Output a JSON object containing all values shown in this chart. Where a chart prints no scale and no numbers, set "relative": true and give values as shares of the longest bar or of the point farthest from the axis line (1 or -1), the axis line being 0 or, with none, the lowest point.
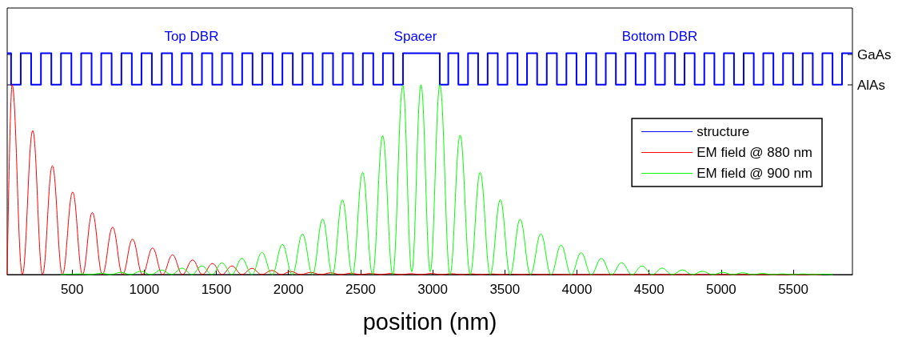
{
  "chart_data": {
    "type": "line",
    "xlabel": "position (nm)",
    "relative": true,
    "xlim": [
      50,
      5910
    ],
    "xticks": [
      500,
      1000,
      1500,
      2000,
      2500,
      3000,
      3500,
      4000,
      4500,
      5000,
      5500
    ],
    "legend": "right",
    "marker": "none",
    "annotations": [
      "Top DBR",
      "Spacer",
      "Bottom DBR",
      "GaAs",
      "AlAs"
    ],
    "series": [
      {
        "name": "structure",
        "color": "#0000ff",
        "type": "step",
        "x": [
          50,
          77,
          144,
          216,
          284,
          356,
          423,
          495,
          563,
          635,
          702,
          774,
          842,
          914,
          981,
          1053,
          1121,
          1193,
          1260,
          1332,
          1400,
          1472,
          1539,
          1611,
          1679,
          1751,
          1818,
          1890,
          1958,
          2030,
          2097,
          2169,
          2237,
          2309,
          2376,
          2448,
          2516,
          2588,
          2655,
          2727,
          2794,
          3049,
          3108,
          3178,
          3245,
          3315,
          3381,
          3451,
          3518,
          3588,
          3654,
          3724,
          3791,
          3861,
          3927,
          3997,
          4064,
          4134,
          4200,
          4270,
          4337,
          4407,
          4473,
          4543,
          4610,
          4680,
          4746,
          4816,
          4883,
          4953,
          5019,
          5089,
          5156,
          5226,
          5292,
          5362,
          5429,
          5499,
          5565,
          5635,
          5702,
          5772,
          5838,
          5910
        ],
        "values": [
          1,
          0.858,
          1,
          0.858,
          1,
          0.858,
          1,
          0.858,
          1,
          0.858,
          1,
          0.858,
          1,
          0.858,
          1,
          0.858,
          1,
          0.858,
          1,
          0.858,
          1,
          0.858,
          1,
          0.858,
          1,
          0.858,
          1,
          0.858,
          1,
          0.858,
          1,
          0.858,
          1,
          0.858,
          1,
          0.858,
          1,
          0.858,
          1,
          0.858,
          1,
          0.858,
          1,
          0.858,
          1,
          0.858,
          1,
          0.858,
          1,
          0.858,
          1,
          0.858,
          1,
          0.858,
          1,
          0.858,
          1,
          0.858,
          1,
          0.858,
          1,
          0.858,
          1,
          0.858,
          1,
          0.858,
          1,
          0.858,
          1,
          0.858,
          1,
          0.858,
          1,
          0.858,
          1,
          0.858,
          1,
          0.858,
          1,
          0.858,
          1,
          0.858,
          1,
          1
        ]
      },
      {
        "name": "EM field @ 880 nm",
        "color": "#ff0000",
        "x": [
          50,
          84,
          155,
          227,
          295,
          363,
          433,
          504,
          572,
          640,
          710,
          781,
          850,
          919,
          988,
          1058,
          1127,
          1196,
          1265,
          1335,
          1404,
          1473,
          1540,
          1608,
          1677,
          1747,
          1816,
          1885,
          1950,
          2016,
          2085,
          2155,
          2224,
          2293,
          2362,
          2432,
          2501,
          2570,
          2640,
          2709,
          2778,
          2850,
          2920,
          2990,
          3060,
          3130,
          3200,
          3270,
          3340,
          3410,
          3480,
          3550,
          3620,
          3690,
          3760,
          3830,
          3900,
          5700
        ],
        "values": [
          0,
          0.858,
          0,
          0.651,
          0,
          0.492,
          0,
          0.373,
          0,
          0.281,
          0,
          0.214,
          0,
          0.16,
          0,
          0.12,
          0,
          0.089,
          0,
          0.066,
          0,
          0.05,
          0,
          0.039,
          0,
          0.028,
          0,
          0.019,
          0,
          0.014,
          0,
          0.01,
          0,
          0.008,
          0,
          0.006,
          0,
          0.005,
          0,
          0.005,
          0,
          0.004,
          0,
          0.005,
          0,
          0.004,
          0,
          0.003,
          0,
          0.003,
          0,
          0.002,
          0,
          0.002,
          0,
          0.001,
          0,
          0
        ]
      },
      {
        "name": "EM field @ 900 nm",
        "color": "#00ff00",
        "x": [
          420,
          558,
          628,
          698,
          767,
          836,
          906,
          975,
          1047,
          1119,
          1190,
          1262,
          1331,
          1400,
          1470,
          1539,
          1608,
          1677,
          1747,
          1816,
          1887,
          1958,
          2027,
          2097,
          2167,
          2237,
          2305,
          2374,
          2444,
          2514,
          2583,
          2653,
          2723,
          2793,
          2855,
          2919,
          2983,
          3050,
          3120,
          3190,
          3260,
          3329,
          3399,
          3469,
          3537,
          3606,
          3678,
          3750,
          3820,
          3890,
          3960,
          4029,
          4099,
          4169,
          4240,
          4310,
          4381,
          4452,
          4521,
          4591,
          4661,
          4731,
          4800,
          4870,
          4941,
          5012,
          5080,
          5149,
          5218,
          5288,
          5357,
          5427,
          5496,
          5566,
          5635,
          5705,
          5774
        ],
        "values": [
          0,
          0.003,
          0,
          0.006,
          0,
          0.01,
          0,
          0.015,
          0,
          0.021,
          0,
          0.029,
          0,
          0.039,
          0,
          0.053,
          0,
          0.073,
          0,
          0.1,
          0,
          0.136,
          0,
          0.183,
          0,
          0.251,
          0,
          0.338,
          0,
          0.462,
          0,
          0.628,
          0,
          0.855,
          0.013,
          0.858,
          0.013,
          0.858,
          0,
          0.63,
          0,
          0.462,
          0,
          0.339,
          0,
          0.25,
          0,
          0.184,
          0,
          0.133,
          0,
          0.099,
          0,
          0.073,
          0,
          0.054,
          0,
          0.039,
          0,
          0.029,
          0,
          0.021,
          0,
          0.015,
          0,
          0.01,
          0,
          0.008,
          0,
          0.005,
          0,
          0.003,
          0,
          0.003,
          0,
          0.002,
          0
        ]
      }
    ]
  }
}
